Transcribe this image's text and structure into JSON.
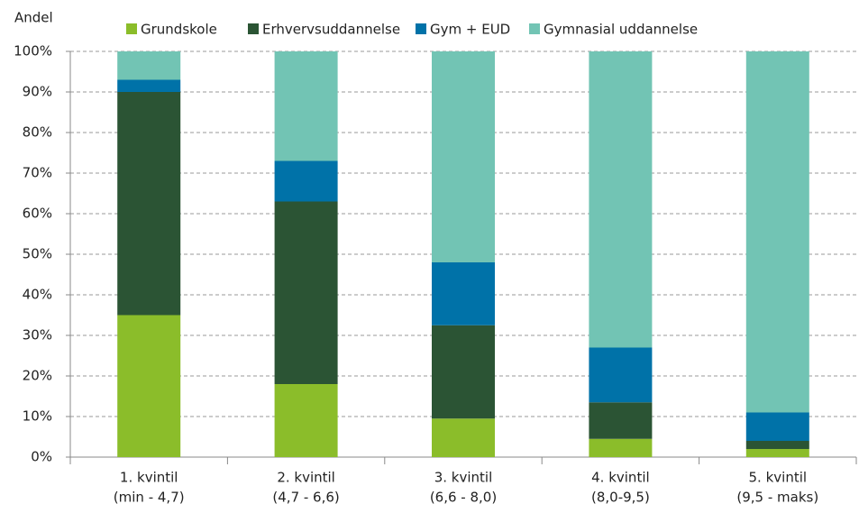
{
  "chart_data": {
    "type": "stacked_bar",
    "y_axis_label": "Andel",
    "categories": [
      [
        "1. kvintil",
        "(min - 4,7)"
      ],
      [
        "2. kvintil",
        "(4,7 - 6,6)"
      ],
      [
        "3. kvintil",
        "(6,6 - 8,0)"
      ],
      [
        "4. kvintil",
        "(8,0-9,5)"
      ],
      [
        "5. kvintil",
        "(9,5 - maks)"
      ]
    ],
    "series": [
      {
        "name": "Grundskole",
        "color": "#8bbd2a",
        "values": [
          35,
          18,
          9.5,
          4.5,
          2
        ]
      },
      {
        "name": "Erhvervsuddannelse",
        "color": "#2b5434",
        "values": [
          55,
          45,
          23,
          9,
          2
        ]
      },
      {
        "name": "Gym + EUD",
        "color": "#0072a8",
        "values": [
          3,
          10,
          15.5,
          13.5,
          7
        ]
      },
      {
        "name": "Gymnasial uddannelse",
        "color": "#72c4b4",
        "values": [
          7,
          27,
          52,
          73,
          89
        ]
      }
    ],
    "ylim": [
      0,
      100
    ],
    "yticks": [
      {
        "value": 0,
        "label": "0%"
      },
      {
        "value": 10,
        "label": "10%"
      },
      {
        "value": 20,
        "label": "20%"
      },
      {
        "value": 30,
        "label": "30%"
      },
      {
        "value": 40,
        "label": "40%"
      },
      {
        "value": 50,
        "label": "50%"
      },
      {
        "value": 60,
        "label": "60%"
      },
      {
        "value": 70,
        "label": "70%"
      },
      {
        "value": 80,
        "label": "80%"
      },
      {
        "value": 90,
        "label": "90%"
      },
      {
        "value": 100,
        "label": "100%"
      }
    ],
    "grid": true,
    "legend": "top"
  }
}
